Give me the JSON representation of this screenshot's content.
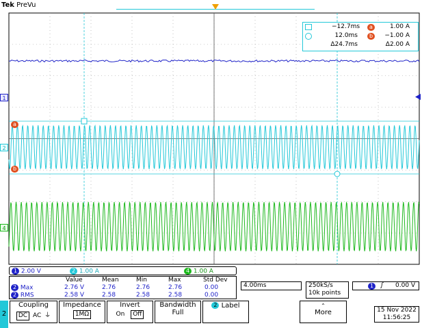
{
  "header": {
    "brand": "Tek",
    "mode": "PreVu",
    "trigger_marker_color": "#f0a000"
  },
  "cursor_readout": {
    "row1": {
      "time": "−12.7ms",
      "label": "a",
      "value": "1.00 A"
    },
    "row2": {
      "time": "12.0ms",
      "label": "b",
      "value": "−1.00 A"
    },
    "row3": {
      "delta_time": "Δ24.7ms",
      "delta_value": "Δ2.00 A"
    }
  },
  "ch_markers": {
    "ch1": "1",
    "ch2": "2",
    "ch4": "4",
    "cursor_a": "a",
    "cursor_b": "b"
  },
  "channels": [
    {
      "num": "1",
      "scale": "2.00 V",
      "color": "#1e22c8"
    },
    {
      "num": "2",
      "scale": "1.00 A",
      "color": "#22c8d8"
    },
    {
      "num": "4",
      "scale": "1.00 A",
      "color": "#1cb81c"
    }
  ],
  "measurements": {
    "headers": [
      "Value",
      "Mean",
      "Min",
      "Max",
      "Std Dev"
    ],
    "rows": [
      {
        "ch": "2",
        "name": "Max",
        "values": [
          "2.76 V",
          "2.76",
          "2.76",
          "2.76",
          "0.00"
        ]
      },
      {
        "ch": "2",
        "name": "RMS",
        "values": [
          "2.58 V",
          "2.58",
          "2.58",
          "2.58",
          "0.00"
        ]
      }
    ]
  },
  "timebase": {
    "scale": "4.00ms"
  },
  "acquisition": {
    "rate": "250kS/s",
    "points": "10k points"
  },
  "trigger": {
    "source": "1",
    "slope": "ʃ",
    "level": "0.00 V"
  },
  "menu": {
    "channel": "2",
    "coupling": {
      "title": "Coupling",
      "options": [
        "DC",
        "AC",
        "⏚"
      ]
    },
    "impedance": {
      "title": "Impedance",
      "value": "1MΩ"
    },
    "invert": {
      "title": "Invert",
      "on": "On",
      "off": "Off"
    },
    "bandwidth": {
      "title": "Bandwidth",
      "value": "Full"
    },
    "label": {
      "ch": "2",
      "title": "Label"
    },
    "more": "More"
  },
  "datetime": {
    "date": "15 Nov 2022",
    "time": "11:56:25"
  }
}
